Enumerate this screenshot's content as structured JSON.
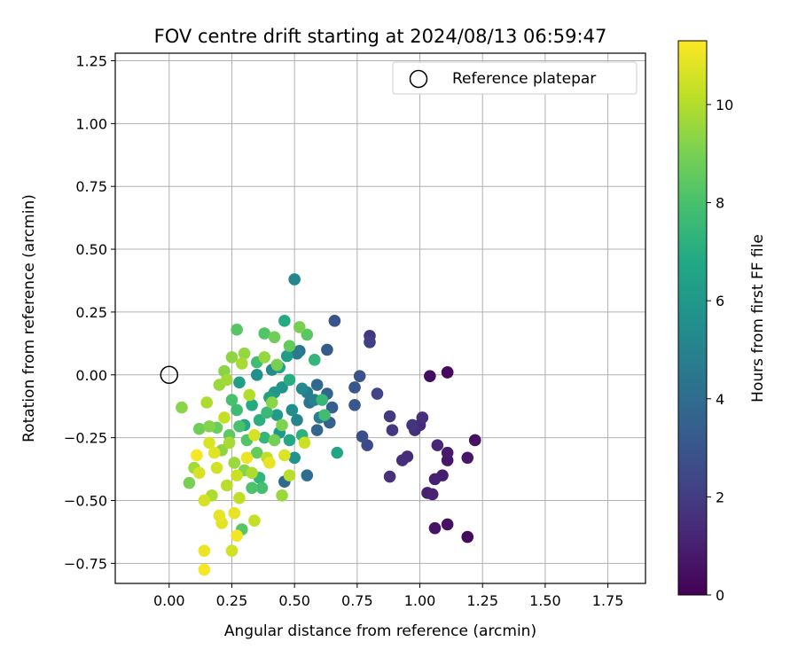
{
  "chart_data": {
    "type": "scatter",
    "title": "FOV centre drift starting at 2024/08/13 06:59:47",
    "xlabel": "Angular distance from reference (arcmin)",
    "ylabel": "Rotation from reference (arcmin)",
    "xlim": [
      -0.215,
      1.9
    ],
    "ylim": [
      -0.83,
      1.28
    ],
    "x_ticks": [
      "0.00",
      "0.25",
      "0.50",
      "0.75",
      "1.00",
      "1.25",
      "1.50",
      "1.75"
    ],
    "y_ticks": [
      "1.25",
      "1.00",
      "0.75",
      "0.50",
      "0.25",
      "0.00",
      "−0.25",
      "−0.50",
      "−0.75"
    ],
    "grid": true,
    "legend": {
      "placement": "top-right",
      "entries": [
        "Reference platepar"
      ]
    },
    "reference_point": {
      "x": 0.0,
      "y": 0.0
    },
    "colorbar": {
      "label": "Hours from first FF file",
      "colormap": "viridis",
      "range": [
        0,
        11.3
      ],
      "ticks": [
        "0",
        "2",
        "4",
        "6",
        "8",
        "10"
      ]
    },
    "series": [
      {
        "points": [
          [
            1.11,
            0.01,
            0.2
          ],
          [
            1.11,
            0.01,
            0.3
          ],
          [
            1.04,
            -0.005,
            0.4
          ],
          [
            1.19,
            -0.645,
            0.3
          ],
          [
            1.11,
            -0.595,
            0.5
          ],
          [
            1.06,
            -0.61,
            0.6
          ],
          [
            1.22,
            -0.26,
            0.5
          ],
          [
            1.19,
            -0.33,
            0.7
          ],
          [
            1.11,
            -0.31,
            0.8
          ],
          [
            1.11,
            -0.34,
            0.7
          ],
          [
            1.09,
            -0.4,
            0.9
          ],
          [
            1.06,
            -0.415,
            1.0
          ],
          [
            1.05,
            -0.475,
            1.1
          ],
          [
            1.03,
            -0.47,
            1.0
          ],
          [
            1.07,
            -0.28,
            1.2
          ],
          [
            0.95,
            -0.325,
            1.4
          ],
          [
            0.93,
            -0.34,
            1.5
          ],
          [
            0.88,
            -0.405,
            1.6
          ],
          [
            1.0,
            -0.2,
            1.3
          ],
          [
            0.98,
            -0.22,
            1.5
          ],
          [
            1.01,
            -0.17,
            1.6
          ],
          [
            0.97,
            -0.2,
            1.7
          ],
          [
            0.89,
            -0.22,
            1.8
          ],
          [
            0.88,
            -0.165,
            1.9
          ],
          [
            0.8,
            0.155,
            1.8
          ],
          [
            0.8,
            0.13,
            2.1
          ],
          [
            0.83,
            -0.075,
            2.3
          ],
          [
            0.79,
            -0.28,
            2.5
          ],
          [
            0.77,
            -0.245,
            2.7
          ],
          [
            0.76,
            -0.005,
            2.8
          ],
          [
            0.74,
            -0.05,
            3.0
          ],
          [
            0.74,
            -0.12,
            3.1
          ],
          [
            0.66,
            0.215,
            2.9
          ],
          [
            0.63,
            0.1,
            3.2
          ],
          [
            0.65,
            -0.13,
            3.4
          ],
          [
            0.64,
            -0.19,
            3.5
          ],
          [
            0.63,
            -0.075,
            3.6
          ],
          [
            0.59,
            -0.22,
            3.7
          ],
          [
            0.59,
            -0.04,
            3.8
          ],
          [
            0.55,
            -0.4,
            4.0
          ],
          [
            0.46,
            -0.425,
            3.9
          ],
          [
            0.5,
            0.38,
            5.2
          ],
          [
            0.67,
            -0.31,
            6.6
          ],
          [
            0.52,
            0.095,
            4.3
          ],
          [
            0.51,
            0.085,
            4.6
          ],
          [
            0.56,
            -0.11,
            4.4
          ],
          [
            0.6,
            -0.17,
            4.8
          ],
          [
            0.58,
            -0.1,
            5.0
          ],
          [
            0.53,
            -0.055,
            5.3
          ],
          [
            0.49,
            -0.14,
            5.5
          ],
          [
            0.45,
            -0.05,
            5.8
          ],
          [
            0.42,
            -0.07,
            6.0
          ],
          [
            0.47,
            0.075,
            6.2
          ],
          [
            0.44,
            0.03,
            6.5
          ],
          [
            0.46,
            0.215,
            6.9
          ],
          [
            0.48,
            -0.02,
            7.0
          ],
          [
            0.53,
            -0.24,
            7.2
          ],
          [
            0.58,
            0.06,
            7.4
          ],
          [
            0.61,
            -0.1,
            7.5
          ],
          [
            0.62,
            -0.16,
            7.8
          ],
          [
            0.39,
            -0.15,
            7.6
          ],
          [
            0.35,
            0.05,
            7.8
          ],
          [
            0.38,
            0.165,
            8.2
          ],
          [
            0.27,
            0.18,
            8.3
          ],
          [
            0.55,
            0.16,
            8.4
          ],
          [
            0.52,
            0.19,
            9.0
          ],
          [
            0.48,
            0.115,
            8.6
          ],
          [
            0.42,
            0.15,
            8.8
          ],
          [
            0.37,
            -0.45,
            7.9
          ],
          [
            0.33,
            -0.45,
            8.1
          ],
          [
            0.29,
            -0.615,
            8.3
          ],
          [
            0.28,
            -0.205,
            8.0
          ],
          [
            0.24,
            -0.24,
            8.5
          ],
          [
            0.19,
            -0.21,
            8.7
          ],
          [
            0.16,
            -0.205,
            9.2
          ],
          [
            0.12,
            -0.215,
            8.8
          ],
          [
            0.22,
            0.015,
            9.3
          ],
          [
            0.25,
            0.07,
            9.4
          ],
          [
            0.3,
            0.085,
            9.5
          ],
          [
            0.29,
            0.045,
            9.8
          ],
          [
            0.23,
            -0.02,
            9.7
          ],
          [
            0.2,
            -0.04,
            9.6
          ],
          [
            0.15,
            -0.11,
            9.9
          ],
          [
            0.05,
            -0.13,
            9.3
          ],
          [
            0.08,
            -0.43,
            9.0
          ],
          [
            0.34,
            -0.58,
            10.3
          ],
          [
            0.25,
            -0.7,
            10.5
          ],
          [
            0.21,
            -0.59,
            10.8
          ],
          [
            0.2,
            -0.56,
            10.9
          ],
          [
            0.14,
            -0.5,
            10.6
          ],
          [
            0.14,
            -0.7,
            11.0
          ],
          [
            0.14,
            -0.775,
            11.2
          ],
          [
            0.27,
            -0.64,
            11.1
          ],
          [
            0.26,
            -0.55,
            10.9
          ],
          [
            0.45,
            -0.48,
            9.6
          ],
          [
            0.48,
            -0.4,
            10.1
          ],
          [
            0.54,
            -0.27,
            10.4
          ],
          [
            0.46,
            -0.32,
            10.7
          ],
          [
            0.4,
            -0.35,
            10.9
          ],
          [
            0.31,
            -0.33,
            11.0
          ],
          [
            0.28,
            -0.49,
            10.2
          ],
          [
            0.18,
            -0.31,
            10.8
          ],
          [
            0.11,
            -0.32,
            11.2
          ],
          [
            0.12,
            -0.39,
            10.6
          ],
          [
            0.1,
            -0.37,
            9.7
          ],
          [
            0.17,
            -0.48,
            9.9
          ],
          [
            0.23,
            -0.44,
            10.1
          ],
          [
            0.3,
            -0.2,
            6.7
          ],
          [
            0.33,
            -0.12,
            6.9
          ],
          [
            0.36,
            -0.18,
            7.1
          ],
          [
            0.4,
            -0.09,
            6.4
          ],
          [
            0.43,
            -0.16,
            6.1
          ],
          [
            0.38,
            -0.25,
            7.4
          ],
          [
            0.27,
            -0.14,
            7.7
          ],
          [
            0.25,
            -0.1,
            8.0
          ],
          [
            0.31,
            -0.26,
            8.2
          ],
          [
            0.35,
            -0.31,
            8.6
          ],
          [
            0.42,
            -0.26,
            8.9
          ],
          [
            0.45,
            -0.2,
            9.1
          ],
          [
            0.21,
            -0.3,
            9.4
          ],
          [
            0.26,
            -0.35,
            9.6
          ],
          [
            0.33,
            -0.39,
            9.9
          ],
          [
            0.39,
            -0.33,
            10.2
          ],
          [
            0.28,
            -0.03,
            6.3
          ],
          [
            0.35,
            0.0,
            5.6
          ],
          [
            0.41,
            0.02,
            5.4
          ],
          [
            0.44,
            -0.23,
            5.9
          ],
          [
            0.5,
            -0.33,
            5.7
          ],
          [
            0.51,
            -0.18,
            5.1
          ],
          [
            0.55,
            -0.07,
            4.7
          ],
          [
            0.48,
            -0.26,
            6.8
          ],
          [
            0.36,
            -0.41,
            7.3
          ],
          [
            0.3,
            -0.38,
            9.2
          ],
          [
            0.24,
            -0.27,
            9.8
          ],
          [
            0.22,
            -0.17,
            10.3
          ],
          [
            0.32,
            -0.08,
            10.0
          ],
          [
            0.38,
            0.07,
            9.5
          ],
          [
            0.43,
            0.04,
            9.0
          ],
          [
            0.19,
            -0.37,
            10.5
          ],
          [
            0.16,
            -0.27,
            10.7
          ],
          [
            0.27,
            -0.4,
            10.4
          ],
          [
            0.34,
            -0.24,
            10.6
          ],
          [
            0.41,
            -0.11,
            9.3
          ]
        ]
      }
    ]
  }
}
